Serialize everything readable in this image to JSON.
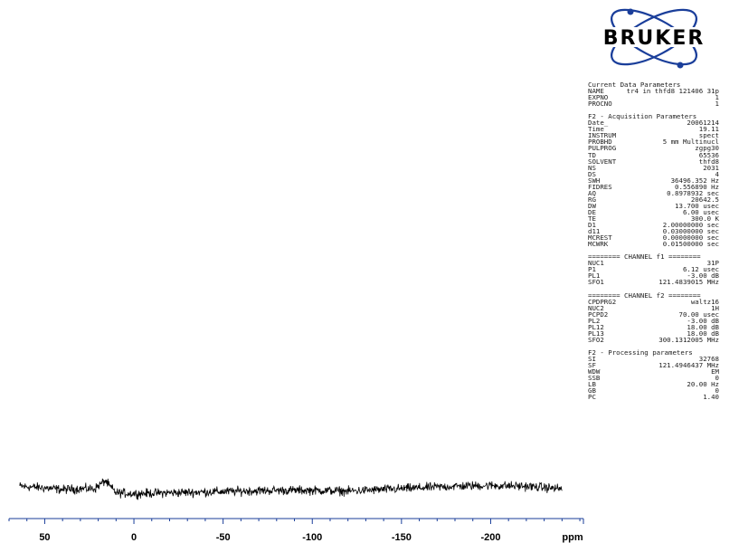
{
  "logo": {
    "text": "BRUKER"
  },
  "parameters": {
    "current": {
      "title": "Current Data Parameters",
      "rows": [
        {
          "key": "NAME",
          "value": "tr4 in thfd8 121406 31p"
        },
        {
          "key": "EXPNO",
          "value": "1"
        },
        {
          "key": "PROCNO",
          "value": "1"
        }
      ]
    },
    "acquisition": {
      "title": "F2 - Acquisition Parameters",
      "rows": [
        {
          "key": "Date_",
          "value": "20061214"
        },
        {
          "key": "Time",
          "value": "19.11"
        },
        {
          "key": "INSTRUM",
          "value": "spect"
        },
        {
          "key": "PROBHD",
          "value": "5 mm Multinucl"
        },
        {
          "key": "PULPROG",
          "value": "zgpg30"
        },
        {
          "key": "TD",
          "value": "65536"
        },
        {
          "key": "SOLVENT",
          "value": "thfd8"
        },
        {
          "key": "NS",
          "value": "2031"
        },
        {
          "key": "DS",
          "value": "4"
        },
        {
          "key": "SWH",
          "value": "36496.352 Hz"
        },
        {
          "key": "FIDRES",
          "value": "0.556890 Hz"
        },
        {
          "key": "AQ",
          "value": "0.8978932 sec"
        },
        {
          "key": "RG",
          "value": "20642.5"
        },
        {
          "key": "DW",
          "value": "13.700 usec"
        },
        {
          "key": "DE",
          "value": "6.00 usec"
        },
        {
          "key": "TE",
          "value": "300.0 K"
        },
        {
          "key": "D1",
          "value": "2.00000000 sec"
        },
        {
          "key": "d11",
          "value": "0.03000000 sec"
        },
        {
          "key": "MCREST",
          "value": "0.00000000 sec"
        },
        {
          "key": "MCWRK",
          "value": "0.01500000 sec"
        }
      ]
    },
    "channel_f1": {
      "title": "======== CHANNEL f1 ========",
      "rows": [
        {
          "key": "NUC1",
          "value": "31P"
        },
        {
          "key": "P1",
          "value": "6.12 usec"
        },
        {
          "key": "PL1",
          "value": "-3.00 dB"
        },
        {
          "key": "SFO1",
          "value": "121.4839015 MHz"
        }
      ]
    },
    "channel_f2": {
      "title": "======== CHANNEL f2 ========",
      "rows": [
        {
          "key": "CPDPRG2",
          "value": "waltz16"
        },
        {
          "key": "NUC2",
          "value": "1H"
        },
        {
          "key": "PCPD2",
          "value": "70.00 usec"
        },
        {
          "key": "PL2",
          "value": "-3.00 dB"
        },
        {
          "key": "PL12",
          "value": "18.00 dB"
        },
        {
          "key": "PL13",
          "value": "18.00 dB"
        },
        {
          "key": "SFO2",
          "value": "300.1312005 MHz"
        }
      ]
    },
    "processing": {
      "title": "F2 - Processing parameters",
      "rows": [
        {
          "key": "SI",
          "value": "32768"
        },
        {
          "key": "SF",
          "value": "121.4946437 MHz"
        },
        {
          "key": "WDW",
          "value": "EM"
        },
        {
          "key": "SSB",
          "value": "0"
        },
        {
          "key": "LB",
          "value": "20.00 Hz"
        },
        {
          "key": "GB",
          "value": "0"
        },
        {
          "key": "PC",
          "value": "1.40"
        }
      ]
    }
  },
  "chart_data": {
    "type": "line",
    "xlabel": "ppm",
    "xlim": [
      70,
      -252
    ],
    "x_reversed": true,
    "major_ticks": [
      50,
      0,
      -50,
      -100,
      -150,
      -200
    ],
    "tick_labels": [
      "50",
      "0",
      "-50",
      "-100",
      "-150",
      "-200"
    ],
    "minor_tick_step": 10,
    "series": [
      {
        "x": [
          64,
          50,
          40,
          30,
          22,
          16,
          14,
          10,
          0,
          -20,
          -40,
          -60,
          -80,
          -100,
          -120,
          -140,
          -160,
          -180,
          -200,
          -220,
          -240
        ],
        "y": [
          0.3,
          0.1,
          -0.1,
          0.0,
          0.0,
          1.0,
          0.4,
          -0.5,
          -0.6,
          -0.5,
          -0.4,
          -0.3,
          -0.2,
          -0.2,
          -0.3,
          -0.1,
          0.1,
          0.3,
          0.4,
          0.3,
          0.0
        ]
      }
    ],
    "grid": false
  }
}
